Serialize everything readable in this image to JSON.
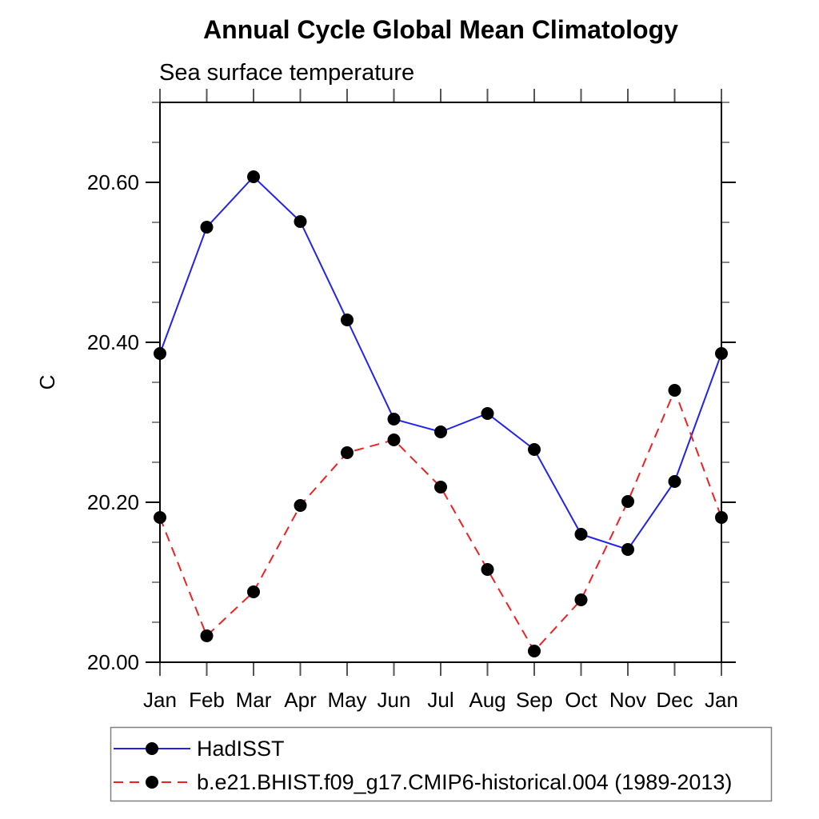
{
  "chart_data": {
    "type": "line",
    "title": "Annual Cycle Global Mean Climatology",
    "subtitle": "Sea surface temperature",
    "ylabel": "C",
    "xlabel": "",
    "categories": [
      "Jan",
      "Feb",
      "Mar",
      "Apr",
      "May",
      "Jun",
      "Jul",
      "Aug",
      "Sep",
      "Oct",
      "Nov",
      "Dec",
      "Jan"
    ],
    "ylim": [
      20.0,
      20.7
    ],
    "yticks_major": [
      20.0,
      20.2,
      20.4,
      20.6
    ],
    "ytick_labels": [
      "20.00",
      "20.20",
      "20.40",
      "20.60"
    ],
    "ytick_minor_step": 0.05,
    "grid": false,
    "legend_position": "bottom-left",
    "marker_color": "#000000",
    "series": [
      {
        "name": "HadISST",
        "color": "#2222ee",
        "line_style": "solid",
        "marker": "circle",
        "values": [
          20.386,
          20.544,
          20.607,
          20.551,
          20.428,
          20.304,
          20.288,
          20.311,
          20.266,
          20.16,
          20.141,
          20.226,
          20.386
        ]
      },
      {
        "name": "b.e21.BHIST.f09_g17.CMIP6-historical.004 (1989-2013)",
        "color": "#ee2222",
        "line_style": "dashed",
        "marker": "circle",
        "values": [
          20.181,
          20.033,
          20.088,
          20.196,
          20.262,
          20.278,
          20.219,
          20.116,
          20.014,
          20.078,
          20.201,
          20.34,
          20.181
        ]
      }
    ]
  }
}
